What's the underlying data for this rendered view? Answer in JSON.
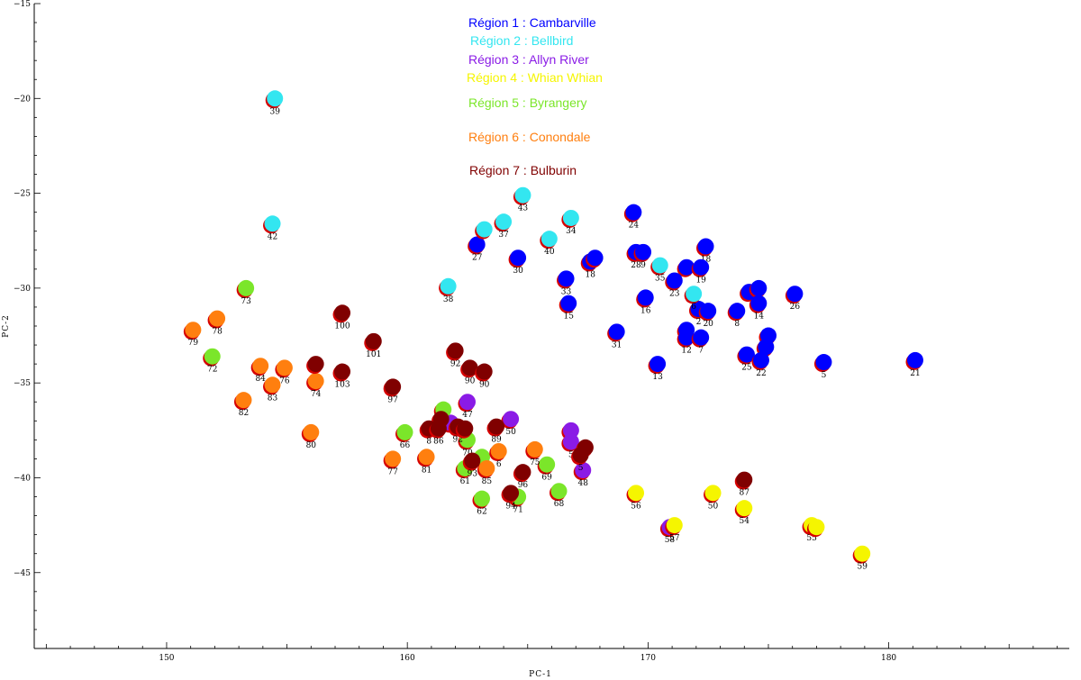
{
  "chart_data": {
    "type": "scatter",
    "xlabel": "PC-1",
    "ylabel": "PC-2",
    "xlim": [
      144.5,
      187.5
    ],
    "ylim": [
      -49,
      -15
    ],
    "xticks": [
      150,
      160,
      170,
      180
    ],
    "yticks": [
      -15,
      -20,
      -25,
      -30,
      -35,
      -40,
      -45
    ],
    "legend": {
      "placement": "top-center",
      "entries": [
        {
          "label": "Région 1 : Cambarville",
          "color": "#0000ff"
        },
        {
          "label": "Région 2 : Bellbird",
          "color": "#33e6f0"
        },
        {
          "label": "Région 3 : Allyn River",
          "color": "#8a1be6"
        },
        {
          "label": "Région 4 : Whian Whian",
          "color": "#f5f500"
        },
        {
          "label": "Région 5 : Byrangery",
          "color": "#7be62a"
        },
        {
          "label": "Région 6 : Conondale",
          "color": "#ff7f0f"
        },
        {
          "label": "Région 7 : Bulburin",
          "color": "#800000"
        }
      ]
    },
    "shadow_color": "#d60000",
    "series": [
      {
        "name": "Région 1 : Cambarville",
        "color": "#0000ff",
        "points": [
          {
            "x": 169.4,
            "y": -26.0,
            "label": "24"
          },
          {
            "x": 162.9,
            "y": -27.7,
            "label": "27"
          },
          {
            "x": 164.6,
            "y": -28.4,
            "label": "30"
          },
          {
            "x": 167.6,
            "y": -28.6,
            "label": "18"
          },
          {
            "x": 167.8,
            "y": -28.4,
            "label": ""
          },
          {
            "x": 169.5,
            "y": -28.1,
            "label": "28"
          },
          {
            "x": 169.8,
            "y": -28.1,
            "label": "9"
          },
          {
            "x": 172.4,
            "y": -27.8,
            "label": "18"
          },
          {
            "x": 171.6,
            "y": -28.9,
            "label": ""
          },
          {
            "x": 172.2,
            "y": -28.9,
            "label": "19"
          },
          {
            "x": 171.1,
            "y": -29.6,
            "label": "23"
          },
          {
            "x": 166.6,
            "y": -29.5,
            "label": "33"
          },
          {
            "x": 169.9,
            "y": -30.5,
            "label": "16"
          },
          {
            "x": 166.7,
            "y": -30.8,
            "label": "15"
          },
          {
            "x": 172.1,
            "y": -31.1,
            "label": "2"
          },
          {
            "x": 172.5,
            "y": -31.2,
            "label": "20"
          },
          {
            "x": 173.7,
            "y": -31.2,
            "label": "8"
          },
          {
            "x": 174.2,
            "y": -30.2,
            "label": ""
          },
          {
            "x": 174.6,
            "y": -30.0,
            "label": ""
          },
          {
            "x": 174.6,
            "y": -30.8,
            "label": "14"
          },
          {
            "x": 176.1,
            "y": -30.3,
            "label": "26"
          },
          {
            "x": 168.7,
            "y": -32.3,
            "label": "31"
          },
          {
            "x": 171.6,
            "y": -32.2,
            "label": ""
          },
          {
            "x": 171.6,
            "y": -32.6,
            "label": "12"
          },
          {
            "x": 172.2,
            "y": -32.6,
            "label": "7"
          },
          {
            "x": 175.0,
            "y": -32.5,
            "label": ""
          },
          {
            "x": 174.9,
            "y": -33.1,
            "label": ""
          },
          {
            "x": 174.1,
            "y": -33.5,
            "label": "25"
          },
          {
            "x": 174.7,
            "y": -33.8,
            "label": "22"
          },
          {
            "x": 170.4,
            "y": -34.0,
            "label": "13"
          },
          {
            "x": 177.3,
            "y": -33.9,
            "label": "5"
          },
          {
            "x": 181.1,
            "y": -33.8,
            "label": "21"
          }
        ]
      },
      {
        "name": "Région 2 : Bellbird",
        "color": "#33e6f0",
        "points": [
          {
            "x": 154.5,
            "y": -20.0,
            "label": "39"
          },
          {
            "x": 164.8,
            "y": -25.1,
            "label": "43"
          },
          {
            "x": 154.4,
            "y": -26.6,
            "label": "42"
          },
          {
            "x": 163.2,
            "y": -26.9,
            "label": ""
          },
          {
            "x": 164.0,
            "y": -26.5,
            "label": "37"
          },
          {
            "x": 166.8,
            "y": -26.3,
            "label": "34"
          },
          {
            "x": 165.9,
            "y": -27.4,
            "label": "40"
          },
          {
            "x": 170.5,
            "y": -28.8,
            "label": "35"
          },
          {
            "x": 171.9,
            "y": -30.3,
            "label": "6"
          },
          {
            "x": 161.7,
            "y": -29.9,
            "label": "38"
          }
        ]
      },
      {
        "name": "Région 3 : Allyn River",
        "color": "#8a1be6",
        "points": [
          {
            "x": 162.5,
            "y": -36.0,
            "label": "47"
          },
          {
            "x": 161.8,
            "y": -37.1,
            "label": ""
          },
          {
            "x": 164.3,
            "y": -36.9,
            "label": "50"
          },
          {
            "x": 166.8,
            "y": -37.5,
            "label": ""
          },
          {
            "x": 166.8,
            "y": -38.1,
            "label": "5"
          },
          {
            "x": 167.3,
            "y": -39.6,
            "label": "48"
          },
          {
            "x": 170.9,
            "y": -42.6,
            "label": "58"
          }
        ]
      },
      {
        "name": "Région 4 : Whian Whian",
        "color": "#f5f500",
        "points": [
          {
            "x": 169.5,
            "y": -40.8,
            "label": "56"
          },
          {
            "x": 172.7,
            "y": -40.8,
            "label": "50"
          },
          {
            "x": 174.0,
            "y": -41.6,
            "label": "54"
          },
          {
            "x": 171.1,
            "y": -42.5,
            "label": "57"
          },
          {
            "x": 176.8,
            "y": -42.5,
            "label": "55"
          },
          {
            "x": 177.0,
            "y": -42.6,
            "label": ""
          },
          {
            "x": 178.9,
            "y": -44.0,
            "label": "59"
          }
        ]
      },
      {
        "name": "Région 5 : Byrangery",
        "color": "#7be62a",
        "points": [
          {
            "x": 153.3,
            "y": -30.0,
            "label": "73"
          },
          {
            "x": 151.9,
            "y": -33.6,
            "label": "72"
          },
          {
            "x": 161.5,
            "y": -36.4,
            "label": ""
          },
          {
            "x": 159.9,
            "y": -37.6,
            "label": "66"
          },
          {
            "x": 162.5,
            "y": -38.0,
            "label": "70"
          },
          {
            "x": 163.1,
            "y": -38.9,
            "label": ""
          },
          {
            "x": 165.8,
            "y": -39.3,
            "label": "69"
          },
          {
            "x": 162.4,
            "y": -39.5,
            "label": "61"
          },
          {
            "x": 163.1,
            "y": -41.1,
            "label": "62"
          },
          {
            "x": 164.6,
            "y": -41.0,
            "label": "71"
          },
          {
            "x": 166.3,
            "y": -40.7,
            "label": "68"
          }
        ]
      },
      {
        "name": "Région 6 : Conondale",
        "color": "#ff7f0f",
        "points": [
          {
            "x": 152.1,
            "y": -31.6,
            "label": "78"
          },
          {
            "x": 151.1,
            "y": -32.2,
            "label": "79"
          },
          {
            "x": 153.9,
            "y": -34.1,
            "label": "84"
          },
          {
            "x": 154.9,
            "y": -34.2,
            "label": "76"
          },
          {
            "x": 154.4,
            "y": -35.1,
            "label": "83"
          },
          {
            "x": 156.2,
            "y": -34.9,
            "label": "74"
          },
          {
            "x": 153.2,
            "y": -35.9,
            "label": "82"
          },
          {
            "x": 156.0,
            "y": -37.6,
            "label": "80"
          },
          {
            "x": 159.4,
            "y": -39.0,
            "label": "77"
          },
          {
            "x": 160.8,
            "y": -38.9,
            "label": "81"
          },
          {
            "x": 163.3,
            "y": -39.5,
            "label": "85"
          },
          {
            "x": 163.8,
            "y": -38.6,
            "label": "6"
          },
          {
            "x": 165.3,
            "y": -38.5,
            "label": "75"
          }
        ]
      },
      {
        "name": "Région 7 : Bulburin",
        "color": "#800000",
        "points": [
          {
            "x": 157.3,
            "y": -31.3,
            "label": "100"
          },
          {
            "x": 158.6,
            "y": -32.8,
            "label": "101"
          },
          {
            "x": 156.2,
            "y": -34.0,
            "label": ""
          },
          {
            "x": 157.3,
            "y": -34.4,
            "label": "103"
          },
          {
            "x": 159.4,
            "y": -35.2,
            "label": "97"
          },
          {
            "x": 162.0,
            "y": -33.3,
            "label": "92"
          },
          {
            "x": 162.6,
            "y": -34.2,
            "label": "90"
          },
          {
            "x": 163.2,
            "y": -34.4,
            "label": "90"
          },
          {
            "x": 161.4,
            "y": -36.9,
            "label": ""
          },
          {
            "x": 160.9,
            "y": -37.4,
            "label": "8"
          },
          {
            "x": 161.3,
            "y": -37.4,
            "label": "86"
          },
          {
            "x": 162.1,
            "y": -37.3,
            "label": "92"
          },
          {
            "x": 162.4,
            "y": -37.4,
            "label": ""
          },
          {
            "x": 163.7,
            "y": -37.3,
            "label": "89"
          },
          {
            "x": 167.4,
            "y": -38.4,
            "label": ""
          },
          {
            "x": 167.2,
            "y": -38.8,
            "label": "5"
          },
          {
            "x": 162.7,
            "y": -39.1,
            "label": "93"
          },
          {
            "x": 164.8,
            "y": -39.7,
            "label": "96"
          },
          {
            "x": 164.3,
            "y": -40.8,
            "label": "94"
          },
          {
            "x": 174.0,
            "y": -40.1,
            "label": "87"
          }
        ]
      }
    ]
  }
}
